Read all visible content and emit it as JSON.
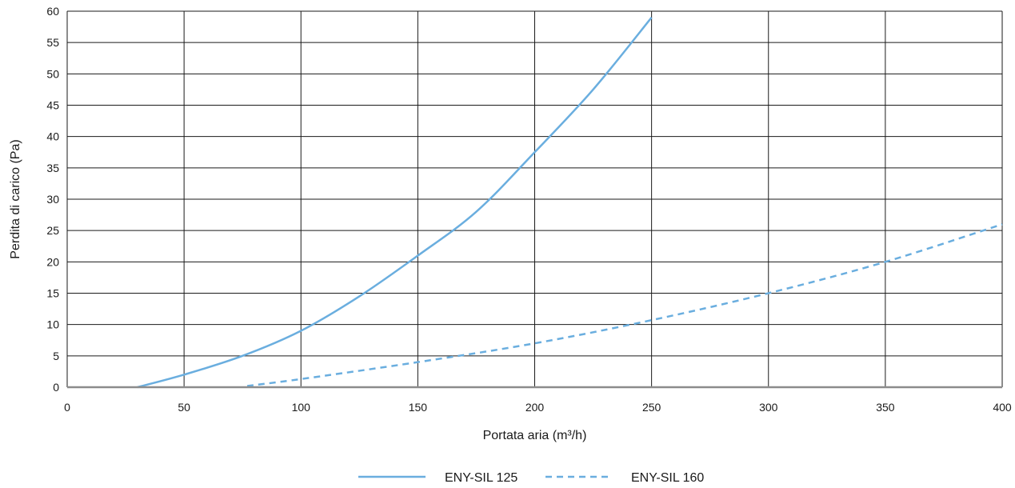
{
  "chart_data": {
    "type": "line",
    "xlabel": "Portata aria (m³/h)",
    "ylabel": "Perdita di carico (Pa)",
    "xlim": [
      0,
      400
    ],
    "ylim": [
      0,
      60
    ],
    "x_ticks": [
      0,
      50,
      100,
      150,
      200,
      250,
      300,
      350,
      400
    ],
    "y_ticks": [
      0,
      5,
      10,
      15,
      20,
      25,
      30,
      35,
      40,
      45,
      50,
      55,
      60
    ],
    "grid": true,
    "legend_position": "bottom-center",
    "series": [
      {
        "name": "ENY-SIL 125",
        "style": "solid",
        "color": "#6aaedf",
        "points": [
          [
            30,
            0
          ],
          [
            50,
            2
          ],
          [
            75,
            5
          ],
          [
            100,
            9
          ],
          [
            125,
            14.5
          ],
          [
            150,
            21
          ],
          [
            175,
            28
          ],
          [
            200,
            37.5
          ],
          [
            225,
            47.5
          ],
          [
            250,
            59
          ]
        ]
      },
      {
        "name": "ENY-SIL 160",
        "style": "dashed",
        "color": "#6aaedf",
        "points": [
          [
            77,
            0.2
          ],
          [
            100,
            1.3
          ],
          [
            150,
            4
          ],
          [
            200,
            7
          ],
          [
            250,
            10.7
          ],
          [
            300,
            15
          ],
          [
            350,
            20
          ],
          [
            400,
            26
          ]
        ]
      }
    ]
  }
}
